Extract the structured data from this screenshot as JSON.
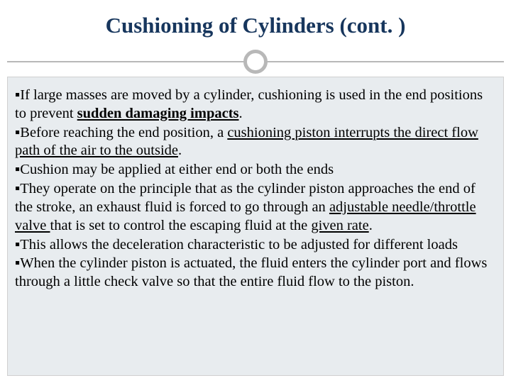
{
  "slide": {
    "title": "Cushioning of Cylinders (cont. )",
    "title_color": "#17365d",
    "title_fontsize": 31,
    "divider_color": "#b8b8b8",
    "content_bg": "#e8ecef",
    "body_fontsize": 20.5,
    "bullets": [
      {
        "runs": [
          {
            "t": "If large masses are moved by a cylinder, cushioning is used in the end positions to prevent "
          },
          {
            "t": "sudden damaging impacts",
            "bold": true,
            "underline": true
          },
          {
            "t": "."
          }
        ]
      },
      {
        "runs": [
          {
            "t": "Before reaching the end position, a "
          },
          {
            "t": "cushioning piston interrupts the direct flow path of the air to the outside",
            "underline": true
          },
          {
            "t": "."
          }
        ]
      },
      {
        "runs": [
          {
            "t": "Cushion may be applied at either end or both the ends"
          }
        ]
      },
      {
        "runs": [
          {
            "t": "They operate on the principle that as the cylinder piston approaches the end of the stroke, an exhaust fluid is forced to go through an "
          },
          {
            "t": "adjustable needle/throttle valve ",
            "underline": true
          },
          {
            "t": "that is set to control the escaping fluid at the "
          },
          {
            "t": "given rate",
            "underline": true
          },
          {
            "t": "."
          }
        ]
      },
      {
        "runs": [
          {
            "t": "This allows the deceleration characteristic to be adjusted for different loads"
          }
        ]
      },
      {
        "runs": [
          {
            "t": "When the cylinder piston is actuated, the fluid enters the cylinder port and flows through a little check valve so that the entire fluid flow to the piston."
          }
        ]
      }
    ]
  }
}
